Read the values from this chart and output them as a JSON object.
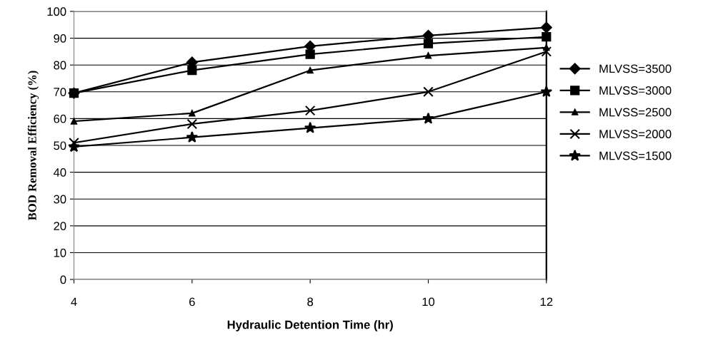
{
  "chart_data": {
    "type": "line",
    "xlabel": "Hydraulic Detention Time (hr)",
    "ylabel": "BOD Removal Efficiency (%)",
    "x": [
      4,
      6,
      8,
      10,
      12
    ],
    "series": [
      {
        "name": "MLVSS=3500",
        "color": "#000000",
        "marker": "diamond",
        "values": [
          69.5,
          81,
          87,
          91,
          94
        ]
      },
      {
        "name": "MLVSS=3000",
        "color": "#000000",
        "marker": "square",
        "values": [
          69.5,
          78,
          84,
          88,
          90.5
        ]
      },
      {
        "name": "MLVSS=2500",
        "color": "#000000",
        "marker": "triangle",
        "values": [
          59,
          62,
          78,
          83.5,
          86.5
        ]
      },
      {
        "name": "MLVSS=2000",
        "color": "#000000",
        "marker": "cross",
        "values": [
          51,
          58,
          63,
          70,
          85
        ]
      },
      {
        "name": "MLVSS=1500",
        "color": "#000000",
        "marker": "star",
        "values": [
          49.5,
          53,
          56.5,
          60,
          70
        ]
      }
    ],
    "xlim": [
      4,
      12
    ],
    "xticks": [
      4,
      6,
      8,
      10,
      12
    ],
    "ylim": [
      0,
      100
    ],
    "yticks": [
      0,
      10,
      20,
      30,
      40,
      50,
      60,
      70,
      80,
      90,
      100
    ],
    "grid": "y",
    "legend": "right",
    "line_style": "solid"
  }
}
